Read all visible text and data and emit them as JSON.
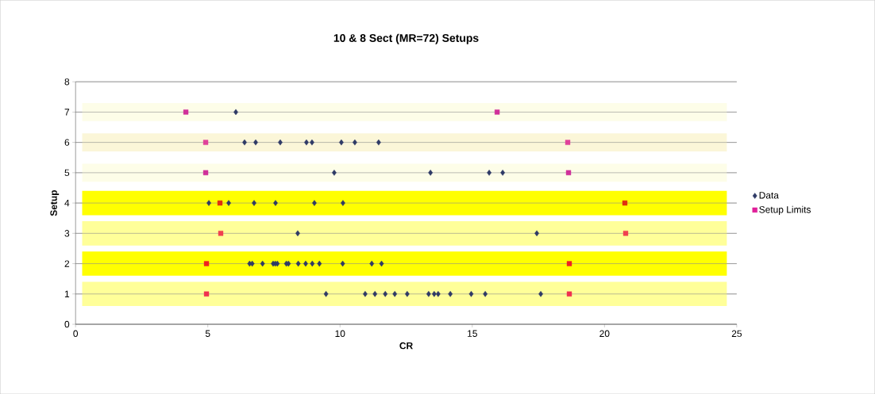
{
  "chart_data": {
    "type": "scatter",
    "title": "10 & 8 Sect (MR=72) Setups",
    "xlabel": "CR",
    "ylabel": "Setup",
    "xlim": [
      0,
      25
    ],
    "ylim": [
      0,
      8
    ],
    "xticks": [
      0,
      5,
      10,
      15,
      20,
      25
    ],
    "yticks": [
      0,
      1,
      2,
      3,
      4,
      5,
      6,
      7,
      8
    ],
    "grid": "y",
    "legend": "right",
    "bands": [
      {
        "axis": "y",
        "from": 0.6,
        "to": 1.4,
        "color": "#ffff99"
      },
      {
        "axis": "y",
        "from": 1.6,
        "to": 2.4,
        "color": "#ffff00"
      },
      {
        "axis": "y",
        "from": 2.6,
        "to": 3.4,
        "color": "#ffff99"
      },
      {
        "axis": "y",
        "from": 3.6,
        "to": 4.4,
        "color": "#ffff00"
      },
      {
        "axis": "y",
        "from": 4.7,
        "to": 5.3,
        "color": "#fdfde8"
      },
      {
        "axis": "y",
        "from": 5.7,
        "to": 6.3,
        "color": "#fbf6d8"
      },
      {
        "axis": "y",
        "from": 6.7,
        "to": 7.3,
        "color": "#fdfde8"
      }
    ],
    "series": [
      {
        "name": "Data",
        "color": "#2f3a66",
        "marker": "diamond",
        "x": [
          6.06,
          6.39,
          6.81,
          7.74,
          8.73,
          8.94,
          10.05,
          10.56,
          11.46,
          9.78,
          13.42,
          15.64,
          16.15,
          5.04,
          5.79,
          6.75,
          7.56,
          9.03,
          10.11,
          8.4,
          17.44,
          6.58,
          6.68,
          7.07,
          7.47,
          7.55,
          7.63,
          7.97,
          8.05,
          8.42,
          8.7,
          8.95,
          9.22,
          10.1,
          11.2,
          11.57,
          9.47,
          10.95,
          11.32,
          11.71,
          12.07,
          12.54,
          13.35,
          13.56,
          13.71,
          14.17,
          14.96,
          15.49,
          17.59
        ],
        "values": [
          7,
          6,
          6,
          6,
          6,
          6,
          6,
          6,
          6,
          5,
          5,
          5,
          5,
          4,
          4,
          4,
          4,
          4,
          4,
          3,
          3,
          2,
          2,
          2,
          2,
          2,
          2,
          2,
          2,
          2,
          2,
          2,
          2,
          2,
          2,
          2,
          1,
          1,
          1,
          1,
          1,
          1,
          1,
          1,
          1,
          1,
          1,
          1,
          1
        ]
      },
      {
        "name": "Setup Limits",
        "color": "#e0209a",
        "marker": "square",
        "x": [
          4.17,
          15.94,
          4.92,
          18.61,
          4.92,
          18.64,
          5.46,
          20.77,
          5.49,
          20.8,
          4.95,
          18.67,
          4.95,
          18.67
        ],
        "values": [
          7,
          7,
          6,
          6,
          5,
          5,
          4,
          4,
          3,
          3,
          2,
          2,
          1,
          1
        ],
        "colors": [
          "#d0309a",
          "#d0309a",
          "#e0409a",
          "#e0409a",
          "#d0309a",
          "#d0309a",
          "#e03010",
          "#e03010",
          "#f04050",
          "#f04050",
          "#f02020",
          "#f02020",
          "#f03050",
          "#f03050"
        ]
      }
    ]
  }
}
